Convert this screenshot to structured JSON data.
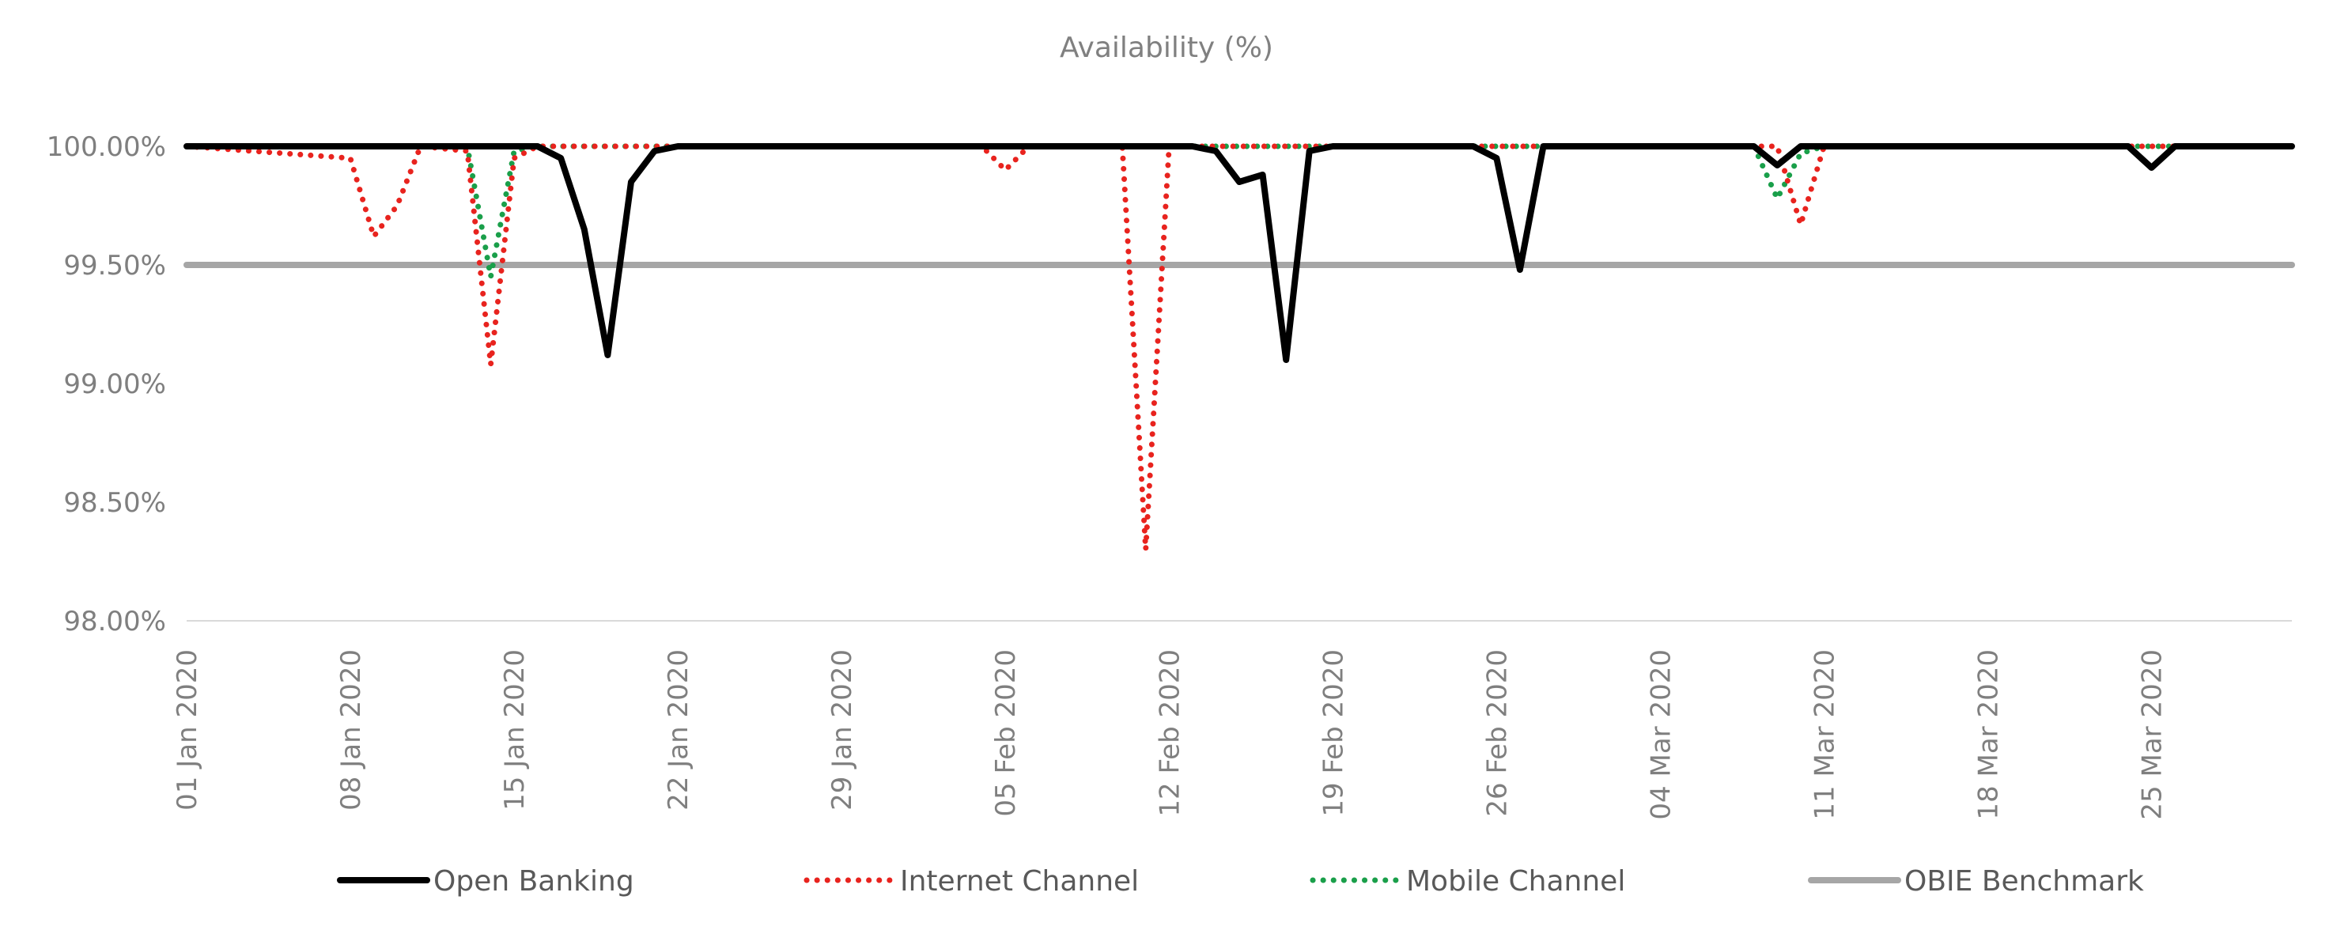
{
  "chart_data": {
    "type": "line",
    "title": "Availability (%)",
    "xlabel": "",
    "ylabel": "",
    "x_range": [
      "2020-01-01",
      "2020-03-31"
    ],
    "ylim": [
      98.0,
      100.0
    ],
    "y_ticks": [
      "100.00%",
      "99.50%",
      "99.00%",
      "98.50%",
      "98.00%"
    ],
    "x_ticks": [
      "01 Jan 2020",
      "08 Jan 2020",
      "15 Jan 2020",
      "22 Jan 2020",
      "29 Jan 2020",
      "05 Feb 2020",
      "12 Feb 2020",
      "19 Feb 2020",
      "26 Feb 2020",
      "04 Mar 2020",
      "11 Mar 2020",
      "18 Mar 2020",
      "25 Mar 2020"
    ],
    "grid": false,
    "legend_position": "bottom",
    "series": [
      {
        "name": "Open Banking",
        "color": "#000000",
        "style": "solid",
        "points": [
          [
            "2020-01-01",
            100.0
          ],
          [
            "2020-01-15",
            100.0
          ],
          [
            "2020-01-16",
            100.0
          ],
          [
            "2020-01-17",
            99.95
          ],
          [
            "2020-01-18",
            99.65
          ],
          [
            "2020-01-19",
            99.12
          ],
          [
            "2020-01-20",
            99.85
          ],
          [
            "2020-01-21",
            99.98
          ],
          [
            "2020-01-22",
            100.0
          ],
          [
            "2020-02-12",
            100.0
          ],
          [
            "2020-02-13",
            100.0
          ],
          [
            "2020-02-14",
            99.98
          ],
          [
            "2020-02-15",
            99.85
          ],
          [
            "2020-02-16",
            99.88
          ],
          [
            "2020-02-17",
            99.1
          ],
          [
            "2020-02-18",
            99.98
          ],
          [
            "2020-02-19",
            100.0
          ],
          [
            "2020-02-25",
            100.0
          ],
          [
            "2020-02-26",
            99.95
          ],
          [
            "2020-02-27",
            99.48
          ],
          [
            "2020-02-28",
            100.0
          ],
          [
            "2020-03-08",
            100.0
          ],
          [
            "2020-03-09",
            99.92
          ],
          [
            "2020-03-10",
            100.0
          ],
          [
            "2020-03-24",
            100.0
          ],
          [
            "2020-03-25",
            99.91
          ],
          [
            "2020-03-26",
            100.0
          ],
          [
            "2020-03-31",
            100.0
          ]
        ]
      },
      {
        "name": "Internet Channel",
        "color": "#e8231e",
        "style": "dotted",
        "points": [
          [
            "2020-01-01",
            100.0
          ],
          [
            "2020-01-08",
            99.95
          ],
          [
            "2020-01-09",
            99.62
          ],
          [
            "2020-01-10",
            99.75
          ],
          [
            "2020-01-11",
            100.0
          ],
          [
            "2020-01-13",
            99.98
          ],
          [
            "2020-01-14",
            99.08
          ],
          [
            "2020-01-15",
            99.95
          ],
          [
            "2020-01-16",
            100.0
          ],
          [
            "2020-02-04",
            100.0
          ],
          [
            "2020-02-05",
            99.9
          ],
          [
            "2020-02-06",
            100.0
          ],
          [
            "2020-02-10",
            100.0
          ],
          [
            "2020-02-11",
            98.3
          ],
          [
            "2020-02-12",
            100.0
          ],
          [
            "2020-03-09",
            100.0
          ],
          [
            "2020-03-10",
            99.67
          ],
          [
            "2020-03-11",
            100.0
          ],
          [
            "2020-03-31",
            100.0
          ]
        ]
      },
      {
        "name": "Mobile Channel",
        "color": "#1a9f4a",
        "style": "dotted",
        "points": [
          [
            "2020-01-01",
            100.0
          ],
          [
            "2020-01-13",
            100.0
          ],
          [
            "2020-01-14",
            99.45
          ],
          [
            "2020-01-15",
            99.98
          ],
          [
            "2020-01-16",
            100.0
          ],
          [
            "2020-03-08",
            100.0
          ],
          [
            "2020-03-09",
            99.78
          ],
          [
            "2020-03-10",
            99.97
          ],
          [
            "2020-03-11",
            100.0
          ],
          [
            "2020-03-31",
            100.0
          ]
        ]
      },
      {
        "name": "OBIE Benchmark",
        "color": "#a6a6a6",
        "style": "solid",
        "points": [
          [
            "2020-01-01",
            99.5
          ],
          [
            "2020-03-31",
            99.5
          ]
        ]
      }
    ]
  }
}
